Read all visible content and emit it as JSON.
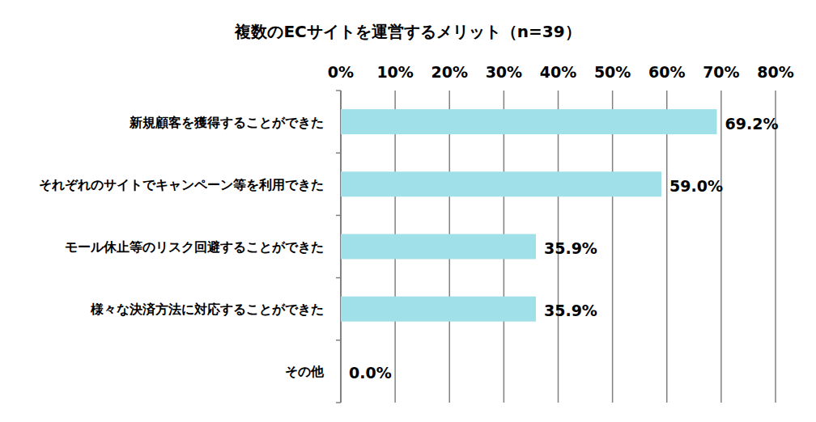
{
  "chart_data": {
    "type": "bar",
    "orientation": "horizontal",
    "title": "複数のECサイトを運営するメリット（n=39）",
    "categories": [
      "新規顧客を獲得することができた",
      "それぞれのサイトでキャンペーン等を利用できた",
      "モール休止等のリスク回避することができた",
      "様々な決済方法に対応することができた",
      "その他"
    ],
    "values": [
      69.2,
      59.0,
      35.9,
      35.9,
      0.0
    ],
    "value_labels": [
      "69.2%",
      "59.0%",
      "35.9%",
      "35.9%",
      "0.0%"
    ],
    "color": "#a0e0e8",
    "xlim": [
      0,
      80
    ],
    "xticks": [
      {
        "value": 0,
        "label": "0%"
      },
      {
        "value": 10,
        "label": "10%"
      },
      {
        "value": 20,
        "label": "20%"
      },
      {
        "value": 30,
        "label": "30%"
      },
      {
        "value": 40,
        "label": "40%"
      },
      {
        "value": 50,
        "label": "50%"
      },
      {
        "value": 60,
        "label": "60%"
      },
      {
        "value": 70,
        "label": "70%"
      },
      {
        "value": 80,
        "label": "80%"
      }
    ],
    "grid": true,
    "data_labels": true
  }
}
